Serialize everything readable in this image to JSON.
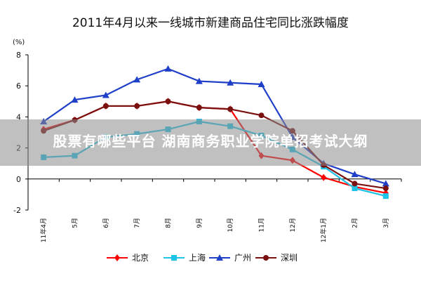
{
  "title": "2011年4月以来一线城市新建商品住宅同比涨跌幅度",
  "unit_label": "(%)",
  "overlay_text": "股票有哪些平台 湖南商务职业学院单招考试大纲",
  "chart_data": {
    "type": "line",
    "title": "2011年4月以来一线城市新建商品住宅同比涨跌幅度",
    "xlabel": "",
    "ylabel": "(%)",
    "ylim": [
      -2,
      8
    ],
    "yticks": [
      -2,
      0,
      2,
      4,
      6,
      8
    ],
    "categories": [
      "11年4月",
      "5月",
      "6月",
      "7月",
      "8月",
      "9月",
      "10月",
      "11月",
      "12月",
      "12年1月",
      "2月",
      "3月"
    ],
    "legend_position": "bottom",
    "series": [
      {
        "name": "北京",
        "color": "#ff0000",
        "marker": "diamond",
        "values": [
          3.2,
          3.8,
          4.7,
          4.7,
          5.0,
          4.6,
          4.5,
          1.5,
          1.2,
          0.1,
          -0.5,
          -0.9
        ]
      },
      {
        "name": "上海",
        "color": "#1ec3e6",
        "marker": "square",
        "values": [
          1.4,
          1.5,
          2.7,
          2.9,
          3.2,
          3.7,
          3.4,
          2.8,
          1.9,
          0.8,
          -0.6,
          -1.1
        ]
      },
      {
        "name": "广州",
        "color": "#1f3fc8",
        "marker": "triangle",
        "values": [
          3.7,
          5.1,
          5.4,
          6.4,
          7.1,
          6.3,
          6.2,
          6.1,
          2.7,
          1.0,
          0.3,
          -0.3
        ]
      },
      {
        "name": "深圳",
        "color": "#7a1010",
        "marker": "circle",
        "values": [
          3.1,
          3.8,
          4.7,
          4.7,
          5.0,
          4.6,
          4.5,
          4.1,
          3.1,
          0.9,
          -0.3,
          -0.6
        ]
      }
    ]
  }
}
